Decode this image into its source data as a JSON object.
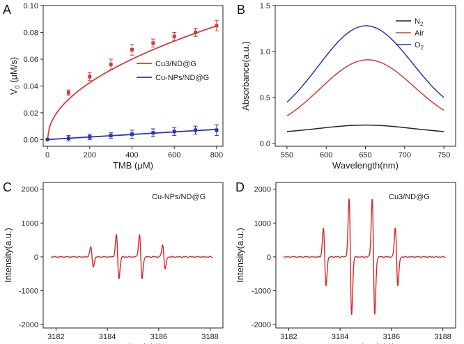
{
  "chart_data": [
    {
      "panel": "A",
      "type": "line",
      "xlabel": "TMB (μM)",
      "ylabel": "V0 (μM/s)",
      "xlim": [
        -20,
        830
      ],
      "ylim": [
        -0.005,
        0.1
      ],
      "xticks": [
        0,
        200,
        400,
        600,
        800
      ],
      "yticks": [
        0.0,
        0.02,
        0.04,
        0.06,
        0.08,
        0.1
      ],
      "ytick_labels": [
        "0.00",
        "0.02",
        "0.04",
        "0.06",
        "0.08",
        "0.10"
      ],
      "legend_position": "middle-right",
      "series": [
        {
          "name": "Cu3/ND@G",
          "color": "#d23c3c",
          "x": [
            100,
            200,
            300,
            400,
            500,
            600,
            700,
            800
          ],
          "values": [
            0.035,
            0.047,
            0.056,
            0.067,
            0.072,
            0.077,
            0.08,
            0.085
          ],
          "errors": [
            0.002,
            0.003,
            0.004,
            0.004,
            0.003,
            0.003,
            0.003,
            0.004
          ],
          "fit": "a*sqrt(x)",
          "fit_coef": 0.003
        },
        {
          "name": "Cu-NPs/ND@G",
          "color": "#2b35b5",
          "x": [
            100,
            200,
            300,
            400,
            500,
            600,
            700,
            800
          ],
          "values": [
            0.001,
            0.002,
            0.003,
            0.004,
            0.005,
            0.006,
            0.007,
            0.007
          ],
          "errors": [
            0.002,
            0.002,
            0.002,
            0.003,
            0.003,
            0.003,
            0.003,
            0.004
          ],
          "fit": "linear",
          "fit_coef": 9.5e-06
        }
      ]
    },
    {
      "panel": "B",
      "type": "line",
      "xlabel": "Wavelength(nm)",
      "ylabel": "Absorbance(a.u.)",
      "xlim": [
        535,
        765
      ],
      "ylim": [
        -0.03,
        1.5
      ],
      "xticks": [
        550,
        600,
        650,
        700,
        750
      ],
      "yticks": [
        0.0,
        0.5,
        1.0,
        1.5
      ],
      "ytick_labels": [
        "0.0",
        "0.5",
        "1.0",
        "1.5"
      ],
      "legend_position": "top-right",
      "series": [
        {
          "name": "N2",
          "label_main": "N",
          "label_sub": "2",
          "color": "#222222",
          "peak": 0.2,
          "center": 650,
          "sigma": 60,
          "base_low": 0.13,
          "base_high": 0.13
        },
        {
          "name": "Air",
          "label_main": "Air",
          "label_sub": "",
          "color": "#d23c3c",
          "peak": 0.91,
          "center": 652,
          "sigma": 60,
          "base_low": 0.31,
          "base_high": 0.35
        },
        {
          "name": "O2",
          "label_main": "O",
          "label_sub": "2",
          "color": "#2b35b5",
          "peak": 1.28,
          "center": 650,
          "sigma": 60,
          "base_low": 0.45,
          "base_high": 0.5
        }
      ]
    },
    {
      "panel": "C",
      "type": "line",
      "xlabel": "Magnetic Field/G",
      "ylabel": "Intensity(a.u.)",
      "xlim": [
        3181.5,
        3188.5
      ],
      "ylim": [
        -2100,
        2200
      ],
      "xticks": [
        3182,
        3184,
        3186,
        3188
      ],
      "yticks": [
        -2000,
        -1000,
        0,
        1000,
        2000
      ],
      "ytick_labels": [
        "-2000",
        "-1000",
        "0",
        "1000",
        "2000"
      ],
      "annotation": "Cu-NPs/ND@G",
      "series": [
        {
          "name": "EPR spectrum",
          "color": "#d42a2a",
          "x_start": 3181.8,
          "x_end": 3188.1,
          "lines": [
            {
              "center": 3183.4,
              "amplitude": 300
            },
            {
              "center": 3184.4,
              "amplitude": 650
            },
            {
              "center": 3185.3,
              "amplitude": 650
            },
            {
              "center": 3186.2,
              "amplitude": 350
            }
          ]
        }
      ]
    },
    {
      "panel": "D",
      "type": "line",
      "xlabel": "Magnetic Field/G",
      "ylabel": "Intensity(a.u.)",
      "xlim": [
        3181.5,
        3188.5
      ],
      "ylim": [
        -2100,
        2200
      ],
      "xticks": [
        3182,
        3184,
        3186,
        3188
      ],
      "yticks": [
        -2000,
        -1000,
        0,
        1000,
        2000
      ],
      "ytick_labels": [
        "-2000",
        "-1000",
        "0",
        "1000",
        "2000"
      ],
      "annotation": "Cu3/ND@G",
      "series": [
        {
          "name": "EPR spectrum",
          "color": "#d42a2a",
          "x_start": 3181.8,
          "x_end": 3188.1,
          "lines": [
            {
              "center": 3183.4,
              "amplitude": 850
            },
            {
              "center": 3184.4,
              "amplitude": 1700
            },
            {
              "center": 3185.3,
              "amplitude": 1700
            },
            {
              "center": 3186.2,
              "amplitude": 850
            }
          ]
        }
      ]
    }
  ]
}
